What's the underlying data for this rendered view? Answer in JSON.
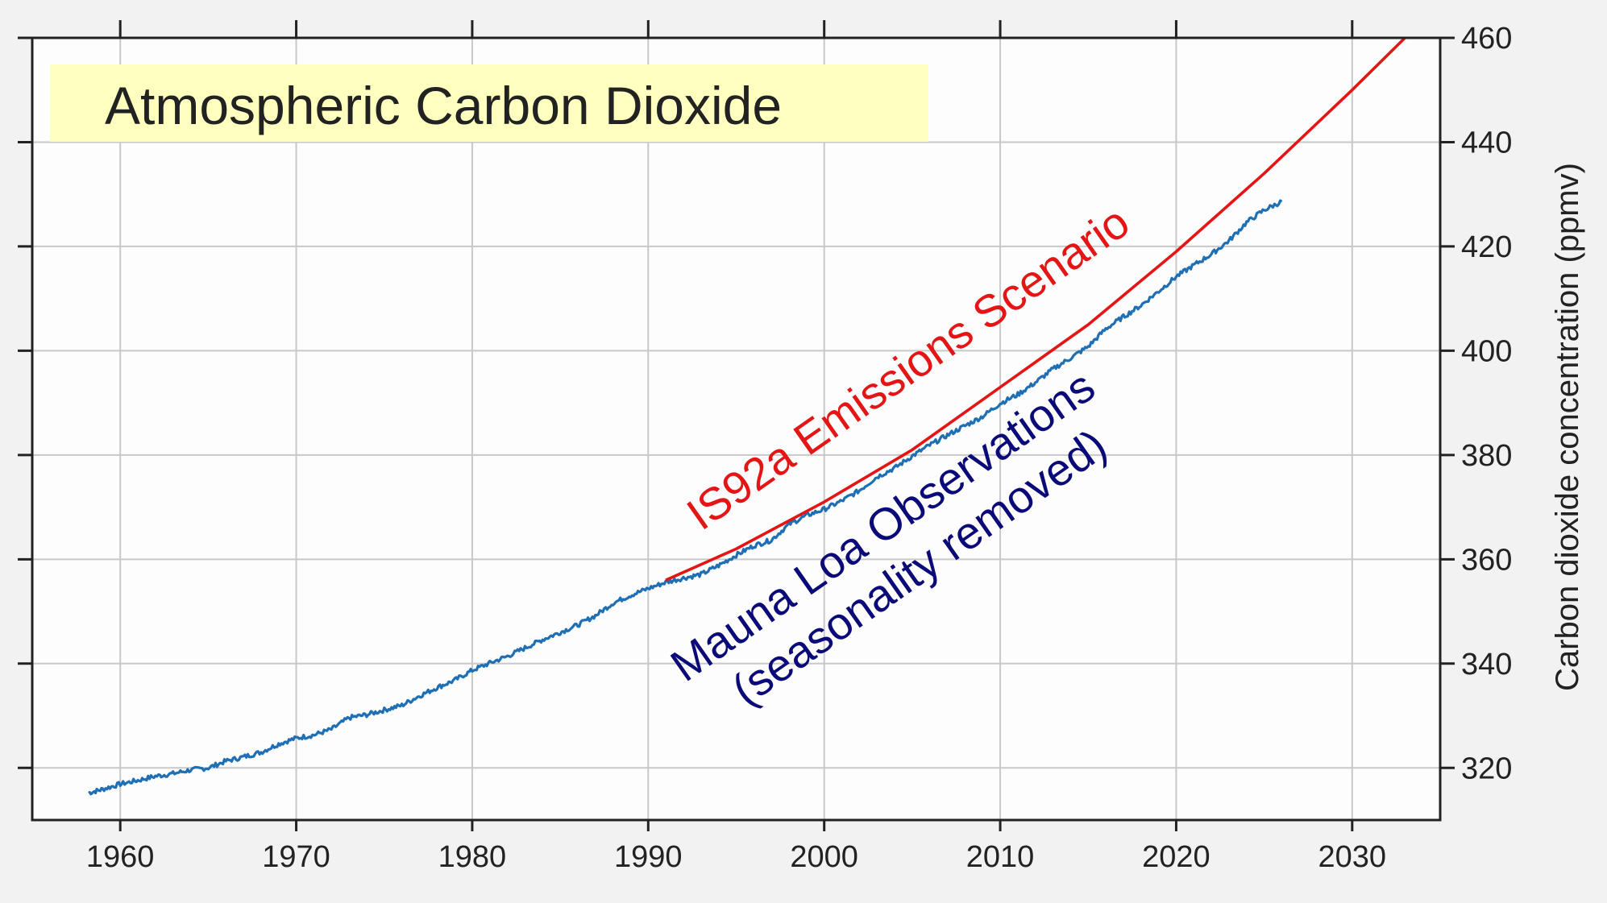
{
  "chart_data": {
    "type": "line",
    "title": "Atmospheric Carbon Dioxide",
    "xlabel": "",
    "ylabel": "Carbon dioxide concentration (ppmv)",
    "xlim": [
      1955,
      2035
    ],
    "ylim": [
      310,
      460
    ],
    "x_ticks": [
      1960,
      1970,
      1980,
      1990,
      2000,
      2010,
      2020,
      2030
    ],
    "y_ticks": [
      320,
      340,
      360,
      380,
      400,
      420,
      440,
      460
    ],
    "grid": true,
    "colors": {
      "observed": "#1f6fb5",
      "scenario": "#e31515",
      "observed_label": "#0a0a78",
      "title_box": "#ffffc0"
    },
    "annotations": {
      "scenario_label": "IS92a Emissions Scenario",
      "observed_label_line1": "Mauna Loa Observations",
      "observed_label_line2": "(seasonality removed)"
    },
    "series": [
      {
        "name": "Mauna Loa Observations (seasonality removed)",
        "x": [
          1958.2,
          1959,
          1960,
          1961,
          1962,
          1963,
          1964,
          1965,
          1966,
          1967,
          1968,
          1969,
          1970,
          1971,
          1972,
          1973,
          1974,
          1975,
          1976,
          1977,
          1978,
          1979,
          1980,
          1981,
          1982,
          1983,
          1984,
          1985,
          1986,
          1987,
          1988,
          1989,
          1990,
          1991,
          1992,
          1993,
          1994,
          1995,
          1996,
          1997,
          1998,
          1999,
          2000,
          2001,
          2002,
          2003,
          2004,
          2005,
          2006,
          2007,
          2008,
          2009,
          2010,
          2011,
          2012,
          2013,
          2014,
          2015,
          2016,
          2017,
          2018,
          2019,
          2020,
          2021,
          2022,
          2023,
          2024,
          2025,
          2026
        ],
        "values": [
          315.2,
          315.9,
          316.9,
          317.6,
          318.4,
          318.9,
          319.6,
          320.0,
          321.3,
          322.1,
          323.0,
          324.6,
          325.7,
          326.3,
          327.4,
          329.6,
          330.2,
          331.1,
          332.0,
          333.8,
          335.4,
          336.8,
          338.7,
          340.1,
          341.4,
          343.0,
          344.6,
          346.0,
          347.4,
          349.2,
          351.6,
          353.1,
          354.4,
          355.6,
          356.4,
          357.1,
          358.8,
          360.8,
          362.6,
          363.7,
          366.7,
          368.4,
          369.6,
          371.2,
          373.2,
          375.8,
          377.5,
          379.8,
          381.9,
          383.8,
          385.6,
          387.4,
          389.9,
          391.6,
          393.9,
          396.5,
          398.6,
          400.8,
          404.2,
          406.5,
          408.7,
          411.4,
          414.2,
          416.4,
          418.5,
          421.1,
          424.6,
          427.0,
          428.6
        ]
      },
      {
        "name": "IS92a Emissions Scenario",
        "x": [
          1991,
          1995,
          2000,
          2005,
          2010,
          2015,
          2020,
          2025,
          2030,
          2033
        ],
        "values": [
          356,
          362,
          371,
          381,
          393,
          405,
          419,
          434,
          450,
          460
        ]
      }
    ]
  }
}
